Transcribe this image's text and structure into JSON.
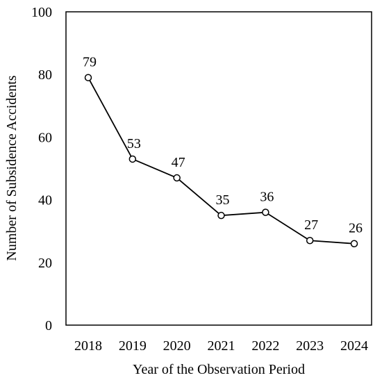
{
  "chart_data": {
    "type": "line",
    "title": "",
    "xlabel": "Year of the Observation Period",
    "ylabel": "Number of Subsidence Accidents",
    "categories": [
      "2018",
      "2019",
      "2020",
      "2021",
      "2022",
      "2023",
      "2024"
    ],
    "series": [
      {
        "values": [
          79,
          53,
          47,
          35,
          36,
          27,
          26
        ]
      }
    ],
    "data_labels": [
      "79",
      "53",
      "47",
      "35",
      "36",
      "27",
      "26"
    ],
    "ylim": [
      0,
      100
    ],
    "yticks": [
      "0",
      "20",
      "40",
      "60",
      "80",
      "100"
    ],
    "grid": false,
    "legend": "none",
    "marker": "open-circle",
    "line_color": "#000000"
  }
}
